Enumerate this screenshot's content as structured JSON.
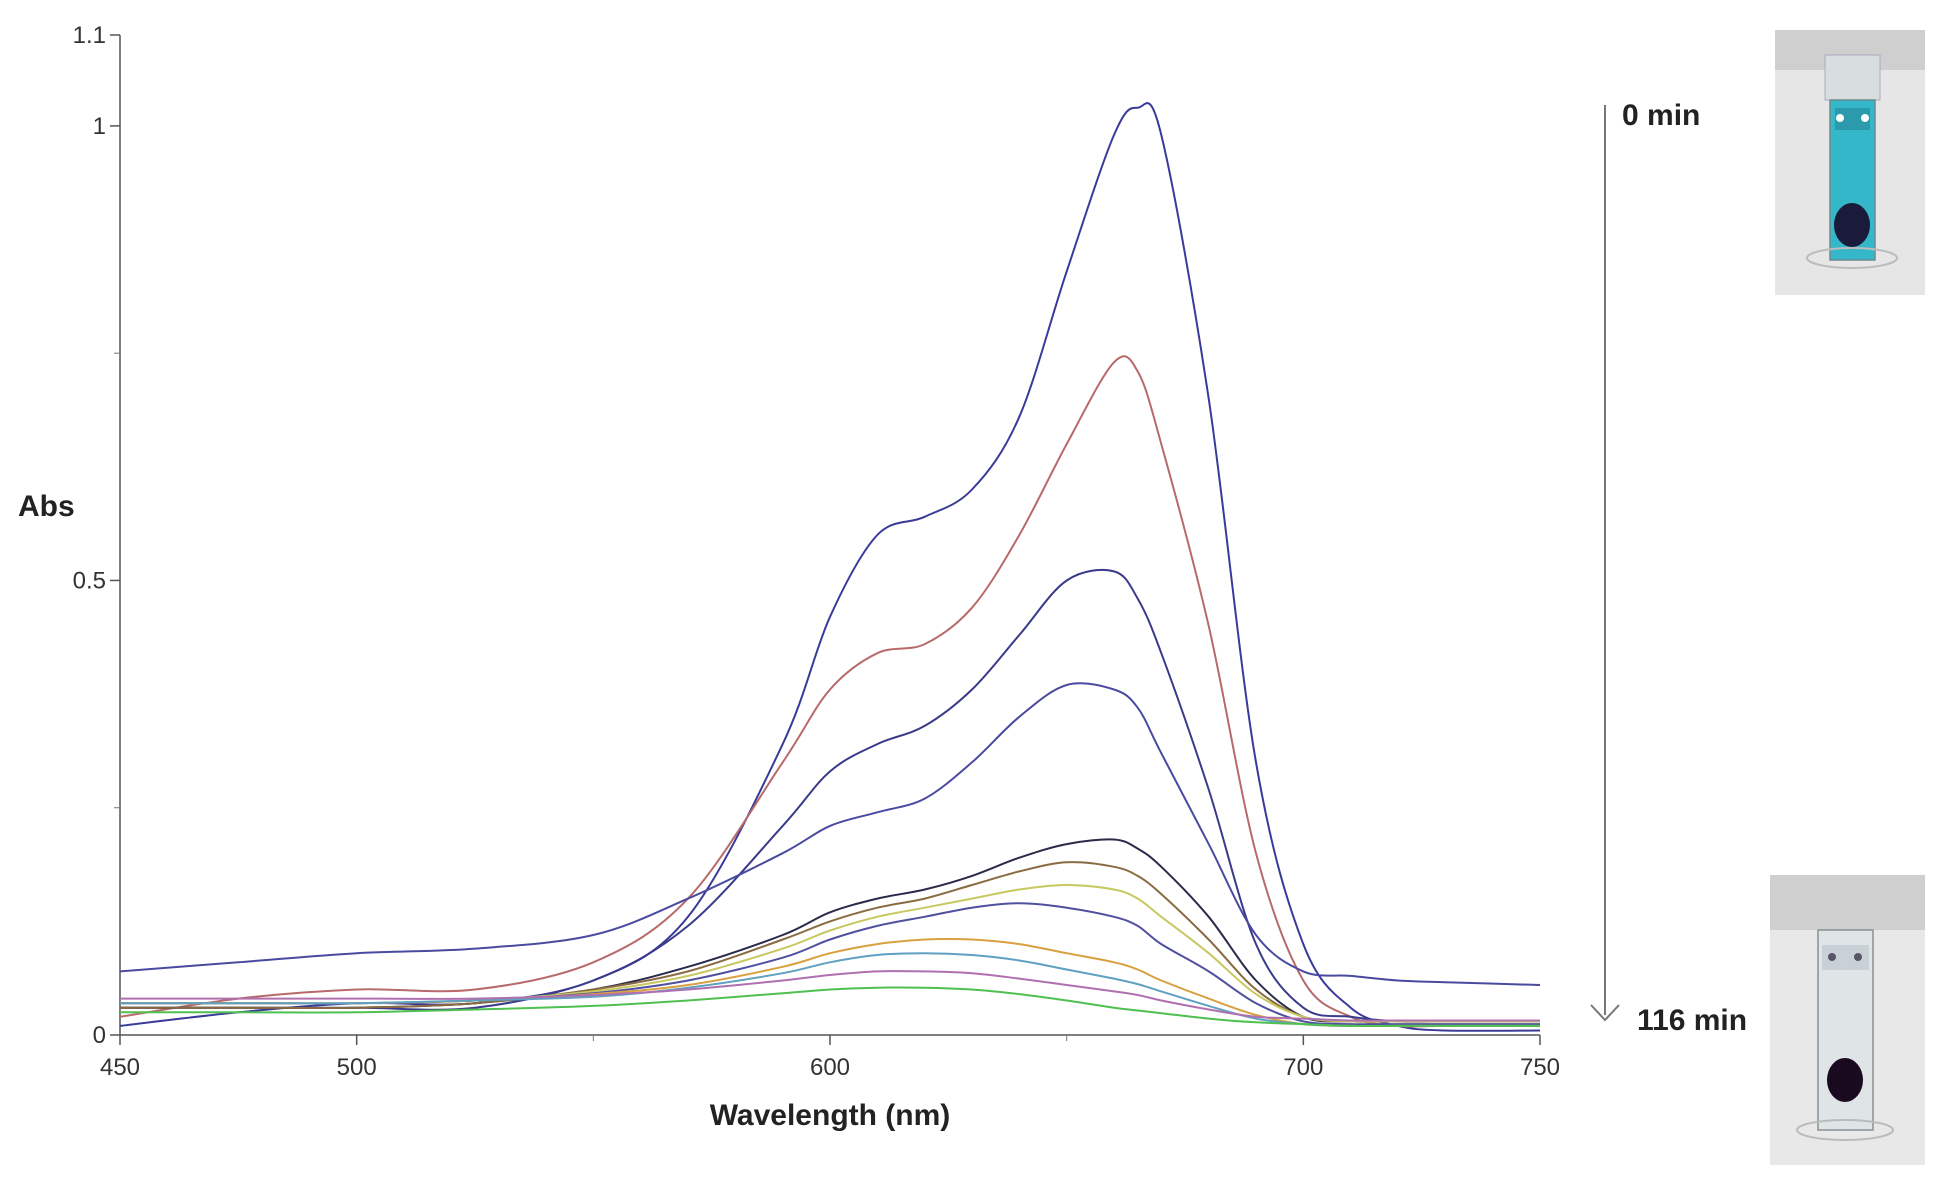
{
  "chart_data": {
    "type": "line",
    "title": "",
    "xlabel": "Wavelength (nm)",
    "ylabel": "Abs",
    "xlim": [
      450,
      750
    ],
    "ylim": [
      0,
      1.1
    ],
    "x_ticks": [
      450,
      500,
      600,
      700,
      750
    ],
    "x_tick_labels": [
      "450",
      "500",
      "600",
      "700",
      "750"
    ],
    "y_ticks": [
      0,
      0.5,
      1,
      1.1
    ],
    "y_tick_labels": [
      "0",
      "0.5",
      "1",
      "1.1"
    ],
    "grid": false,
    "legend": "none",
    "x": [
      450,
      475,
      500,
      525,
      550,
      570,
      590,
      600,
      610,
      620,
      630,
      640,
      650,
      660,
      665,
      670,
      680,
      690,
      700,
      710,
      720,
      730,
      750
    ],
    "series": [
      {
        "color": "#3a3a9a",
        "values": [
          0.01,
          0.025,
          0.035,
          0.035,
          0.06,
          0.13,
          0.32,
          0.46,
          0.55,
          0.57,
          0.6,
          0.68,
          0.84,
          0.99,
          1.02,
          0.99,
          0.7,
          0.3,
          0.1,
          0.03,
          0.01,
          0.005,
          0.005
        ]
      },
      {
        "color": "#b86a6a",
        "values": [
          0.02,
          0.04,
          0.05,
          0.05,
          0.08,
          0.15,
          0.3,
          0.38,
          0.42,
          0.43,
          0.47,
          0.55,
          0.65,
          0.74,
          0.73,
          0.65,
          0.45,
          0.2,
          0.06,
          0.02,
          0.01,
          0.01,
          0.01
        ]
      },
      {
        "color": "#3a3a8a",
        "values": [
          0.03,
          0.03,
          0.03,
          0.03,
          0.06,
          0.12,
          0.23,
          0.29,
          0.32,
          0.34,
          0.38,
          0.44,
          0.5,
          0.51,
          0.48,
          0.42,
          0.27,
          0.1,
          0.03,
          0.02,
          0.015,
          0.015,
          0.015
        ]
      },
      {
        "color": "#4a4aa0",
        "values": [
          0.07,
          0.08,
          0.09,
          0.095,
          0.11,
          0.15,
          0.2,
          0.23,
          0.245,
          0.26,
          0.3,
          0.35,
          0.385,
          0.38,
          0.36,
          0.31,
          0.21,
          0.11,
          0.07,
          0.065,
          0.06,
          0.058,
          0.055
        ]
      },
      {
        "color": "#2a2a4a",
        "values": [
          0.03,
          0.03,
          0.03,
          0.035,
          0.05,
          0.075,
          0.11,
          0.135,
          0.15,
          0.16,
          0.175,
          0.195,
          0.21,
          0.215,
          0.205,
          0.185,
          0.13,
          0.06,
          0.02,
          0.015,
          0.015,
          0.015,
          0.015
        ]
      },
      {
        "color": "#8a6a40",
        "values": [
          0.03,
          0.03,
          0.03,
          0.035,
          0.05,
          0.07,
          0.105,
          0.125,
          0.14,
          0.15,
          0.165,
          0.18,
          0.19,
          0.185,
          0.175,
          0.155,
          0.105,
          0.05,
          0.02,
          0.015,
          0.015,
          0.015,
          0.015
        ]
      },
      {
        "color": "#c8c860",
        "values": [
          0.035,
          0.035,
          0.035,
          0.038,
          0.048,
          0.065,
          0.095,
          0.115,
          0.13,
          0.14,
          0.15,
          0.16,
          0.165,
          0.16,
          0.15,
          0.13,
          0.09,
          0.045,
          0.02,
          0.015,
          0.015,
          0.015,
          0.015
        ]
      },
      {
        "color": "#5050a0",
        "values": [
          0.035,
          0.035,
          0.035,
          0.038,
          0.046,
          0.06,
          0.085,
          0.105,
          0.12,
          0.13,
          0.14,
          0.145,
          0.14,
          0.13,
          0.12,
          0.1,
          0.07,
          0.035,
          0.015,
          0.012,
          0.012,
          0.012,
          0.012
        ]
      },
      {
        "color": "#d8a040",
        "values": [
          0.035,
          0.035,
          0.035,
          0.038,
          0.045,
          0.055,
          0.075,
          0.09,
          0.1,
          0.105,
          0.105,
          0.1,
          0.09,
          0.08,
          0.072,
          0.06,
          0.04,
          0.022,
          0.012,
          0.01,
          0.01,
          0.01,
          0.01
        ]
      },
      {
        "color": "#60a0c0",
        "values": [
          0.035,
          0.035,
          0.035,
          0.038,
          0.042,
          0.052,
          0.068,
          0.08,
          0.088,
          0.09,
          0.088,
          0.082,
          0.072,
          0.062,
          0.056,
          0.048,
          0.032,
          0.018,
          0.012,
          0.01,
          0.01,
          0.01,
          0.01
        ]
      },
      {
        "color": "#b070b0",
        "values": [
          0.04,
          0.04,
          0.04,
          0.04,
          0.044,
          0.05,
          0.06,
          0.066,
          0.07,
          0.07,
          0.068,
          0.062,
          0.055,
          0.048,
          0.044,
          0.038,
          0.028,
          0.02,
          0.018,
          0.016,
          0.016,
          0.016,
          0.016
        ]
      },
      {
        "color": "#50c050",
        "values": [
          0.025,
          0.025,
          0.025,
          0.028,
          0.032,
          0.038,
          0.046,
          0.05,
          0.052,
          0.052,
          0.05,
          0.045,
          0.038,
          0.03,
          0.027,
          0.024,
          0.018,
          0.014,
          0.012,
          0.01,
          0.01,
          0.01,
          0.01
        ]
      }
    ],
    "annotations": {
      "arrow_start_label": "0 min",
      "arrow_end_label": "116 min"
    },
    "photo_insets": {
      "top_description_color": "#34b7c8",
      "bottom_description_color": "#cfd8dc"
    }
  }
}
